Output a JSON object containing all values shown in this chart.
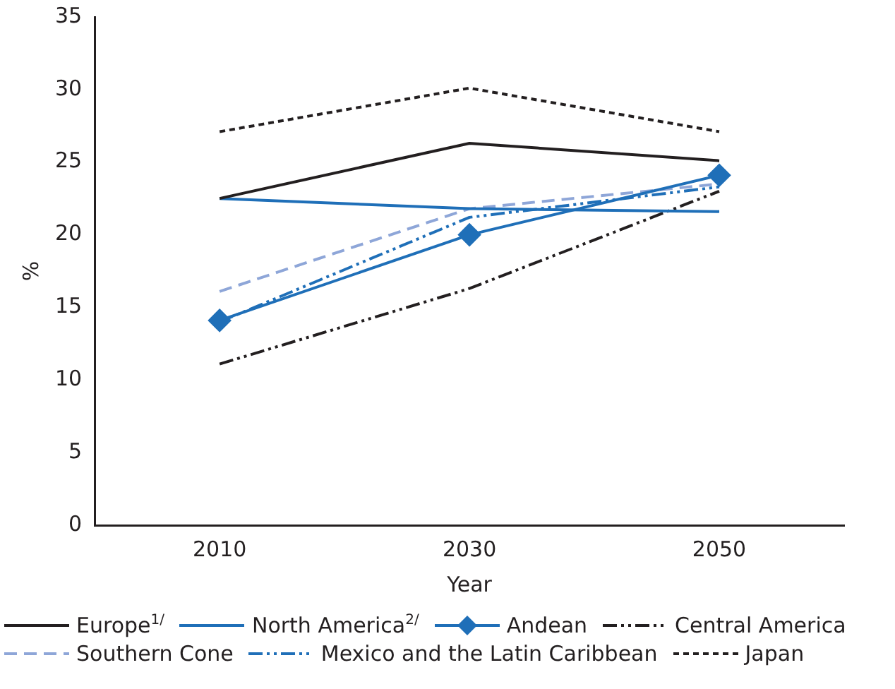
{
  "chart_data": {
    "type": "line",
    "xlabel": "Year",
    "ylabel": "%",
    "categories": [
      "2010",
      "2030",
      "2050"
    ],
    "ylim": [
      0,
      35
    ],
    "yticks": [
      0,
      5,
      10,
      15,
      20,
      25,
      30,
      35
    ],
    "grid": false,
    "legend": "bottom",
    "marker": "none",
    "series": [
      {
        "name": "Europe$^{1/}$",
        "color": "#231f20",
        "line_style": "solid",
        "values": [
          22.5,
          26.3,
          25.1
        ]
      },
      {
        "name": "North America$^{2/}$",
        "color": "#1f6fb8",
        "line_style": "solid",
        "values": [
          22.5,
          21.8,
          21.6
        ]
      },
      {
        "name": "Andean",
        "color": "#1f6fb8",
        "line_style": "solid",
        "marker": "diamond",
        "values": [
          14.1,
          20.0,
          24.1
        ]
      },
      {
        "name": "Central America",
        "color": "#231f20",
        "line_style": "dashdotdot",
        "values": [
          11.1,
          16.3,
          23.0
        ]
      },
      {
        "name": "Southern Cone",
        "color": "#8ea6d8",
        "line_style": "dashed",
        "values": [
          16.1,
          21.8,
          23.5
        ]
      },
      {
        "name": "Mexico and the Latin Caribbean",
        "color": "#1f6fb8",
        "line_style": "dashdotdot",
        "values": [
          14.0,
          21.2,
          23.3
        ]
      },
      {
        "name": "Japan",
        "color": "#231f20",
        "line_style": "dotted",
        "values": [
          27.1,
          30.1,
          27.1
        ]
      }
    ]
  }
}
